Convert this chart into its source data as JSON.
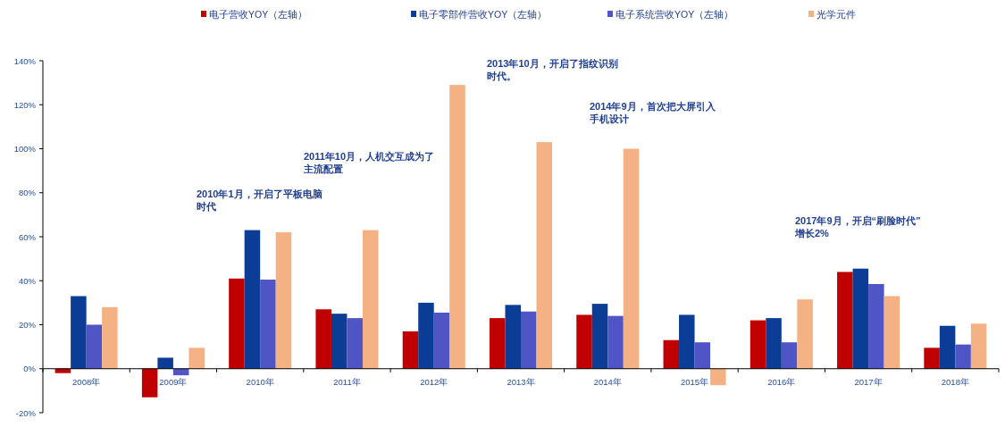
{
  "chart_data": {
    "type": "bar",
    "categories": [
      "2008年",
      "2009年",
      "2010年",
      "2011年",
      "2012年",
      "2013年",
      "2014年",
      "2015年",
      "2016年",
      "2017年",
      "2018年"
    ],
    "series": [
      {
        "name": "电子营收YOY（左轴）",
        "color": "#c00000",
        "values": [
          -2,
          -13,
          41,
          27,
          17,
          23,
          24.5,
          13,
          22,
          44,
          9.5
        ]
      },
      {
        "name": "电子零部件营收YOY（左轴）",
        "color": "#0b3c96",
        "values": [
          33,
          5,
          63,
          25,
          30,
          29,
          29.5,
          24.5,
          23,
          45.5,
          19.5
        ]
      },
      {
        "name": "电子系统营收YOY（左轴）",
        "color": "#4f55c4",
        "values": [
          20,
          -3,
          40.5,
          23,
          25.5,
          26,
          24,
          12,
          12,
          38.5,
          11
        ]
      },
      {
        "name": "光学元件",
        "color": "#f4b183",
        "values": [
          28,
          9.5,
          62,
          63,
          129,
          103,
          100,
          -7.5,
          31.5,
          33,
          20.5
        ]
      }
    ],
    "ylim": [
      -20,
      140
    ],
    "yticks": [
      {
        "value": -20,
        "label": "-20%"
      },
      {
        "value": 0,
        "label": "0%"
      },
      {
        "value": 20,
        "label": "20%"
      },
      {
        "value": 40,
        "label": "40%"
      },
      {
        "value": 60,
        "label": "60%"
      },
      {
        "value": 80,
        "label": "80%"
      },
      {
        "value": 100,
        "label": "100%"
      },
      {
        "value": 120,
        "label": "120%"
      },
      {
        "value": 140,
        "label": "140%"
      }
    ],
    "legend": "top",
    "annotations": [
      "2010年1月，开启了平板电脑时代",
      "2011年10月，人机交互成为了主流配置",
      "2013年10月，开启了指纹识别时代。",
      "2014年9月，首次把大屏引入手机设计",
      "2017年9月，开启“刷脸时代” 增长2%"
    ]
  }
}
